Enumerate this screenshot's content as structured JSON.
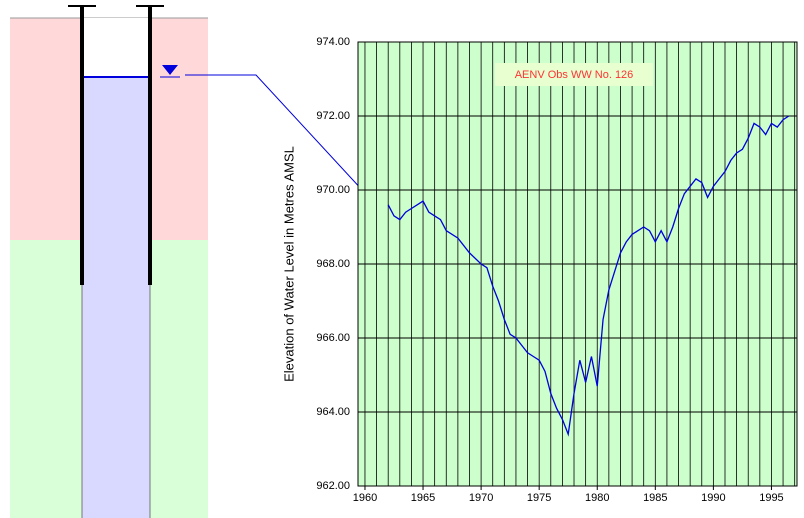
{
  "chart_data": {
    "type": "line",
    "y_label": "Elevation of Water Level in Metres AMSL",
    "annotation": "AENV Obs WW No. 126",
    "xlim": [
      1959.4,
      1997.2
    ],
    "xticks": [
      1960,
      1965,
      1970,
      1975,
      1980,
      1985,
      1990,
      1995
    ],
    "x_grid_step": 1,
    "ylim": [
      962,
      974
    ],
    "yticks": [
      {
        "value": 962,
        "label": "962.00"
      },
      {
        "value": 964,
        "label": "964.00"
      },
      {
        "value": 966,
        "label": "966.00"
      },
      {
        "value": 968,
        "label": "968.00"
      },
      {
        "value": 970,
        "label": "970.00"
      },
      {
        "value": 972,
        "label": "972.00"
      },
      {
        "value": 974,
        "label": "974.00"
      }
    ],
    "grid": true,
    "series": [
      {
        "color": "#0000dd",
        "x": [
          1962.0,
          1962.5,
          1963.0,
          1963.5,
          1964.0,
          1964.5,
          1965.0,
          1965.5,
          1966.0,
          1966.5,
          1967.0,
          1968.0,
          1969.0,
          1970.0,
          1970.5,
          1971.0,
          1971.5,
          1972.0,
          1972.5,
          1973.0,
          1973.5,
          1974.0,
          1974.5,
          1975.0,
          1975.5,
          1976.0,
          1976.5,
          1977.0,
          1977.5,
          1978.0,
          1978.5,
          1979.0,
          1979.5,
          1980.0,
          1980.5,
          1981.0,
          1981.5,
          1982.0,
          1982.5,
          1983.0,
          1983.5,
          1984.0,
          1984.5,
          1985.0,
          1985.5,
          1986.0,
          1986.5,
          1987.0,
          1987.5,
          1988.0,
          1988.5,
          1989.0,
          1989.5,
          1990.0,
          1990.5,
          1991.0,
          1991.5,
          1992.0,
          1992.5,
          1993.0,
          1993.5,
          1994.0,
          1994.5,
          1995.0,
          1995.5,
          1996.0,
          1996.5
        ],
        "values": [
          969.6,
          969.3,
          969.2,
          969.4,
          969.5,
          969.6,
          969.7,
          969.4,
          969.3,
          969.2,
          968.9,
          968.7,
          968.3,
          968.0,
          967.9,
          967.4,
          967.0,
          966.5,
          966.1,
          966.0,
          965.8,
          965.6,
          965.5,
          965.4,
          965.1,
          964.5,
          964.1,
          963.8,
          963.4,
          964.5,
          965.4,
          964.8,
          965.5,
          964.7,
          966.5,
          967.3,
          967.8,
          968.3,
          968.6,
          968.8,
          968.9,
          969.0,
          968.9,
          968.6,
          968.9,
          968.6,
          969.0,
          969.5,
          969.9,
          970.1,
          970.3,
          970.2,
          969.8,
          970.1,
          970.3,
          970.5,
          970.8,
          971.0,
          971.1,
          971.4,
          971.8,
          971.7,
          971.5,
          971.8,
          971.7,
          971.9,
          972.0
        ]
      }
    ]
  }
}
